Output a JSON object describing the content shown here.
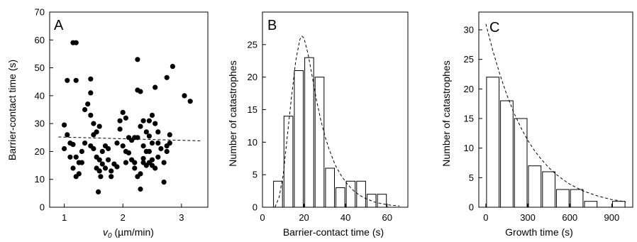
{
  "chart_data": [
    {
      "type": "scatter",
      "panel_label": "A",
      "xlabel_symbol": "v",
      "xlabel_sub": "0",
      "xlabel_unit": " (µm/min)",
      "ylabel": "Barrier-contact time (s)",
      "xlim": [
        0.75,
        3.45
      ],
      "ylim": [
        0,
        70
      ],
      "xticks": [
        1,
        2,
        3
      ],
      "yticks": [
        0,
        10,
        20,
        30,
        40,
        50,
        60,
        70
      ],
      "trend_line": {
        "x": [
          0.9,
          3.35
        ],
        "y": [
          25.2,
          23.8
        ]
      },
      "points": [
        [
          1.15,
          59
        ],
        [
          1.2,
          59
        ],
        [
          1.05,
          45.5
        ],
        [
          1.2,
          45.5
        ],
        [
          1.45,
          46
        ],
        [
          1.4,
          37
        ],
        [
          1.45,
          41
        ],
        [
          1.35,
          35
        ],
        [
          1.45,
          33
        ],
        [
          1.5,
          26
        ],
        [
          1.0,
          29.5
        ],
        [
          1.05,
          26
        ],
        [
          1.1,
          23
        ],
        [
          1.15,
          22.5
        ],
        [
          1.0,
          21
        ],
        [
          1.1,
          18
        ],
        [
          1.2,
          18
        ],
        [
          1.15,
          14
        ],
        [
          1.2,
          11
        ],
        [
          1.25,
          16
        ],
        [
          1.3,
          20
        ],
        [
          1.35,
          23
        ],
        [
          1.5,
          30
        ],
        [
          1.55,
          27
        ],
        [
          1.6,
          29
        ],
        [
          1.65,
          20
        ],
        [
          1.5,
          21
        ],
        [
          1.55,
          18
        ],
        [
          1.6,
          17
        ],
        [
          1.55,
          14
        ],
        [
          1.6,
          13
        ],
        [
          1.62,
          11
        ],
        [
          1.58,
          5.5
        ],
        [
          1.65,
          15.5
        ],
        [
          1.7,
          22
        ],
        [
          1.75,
          17
        ],
        [
          1.8,
          13
        ],
        [
          1.8,
          11
        ],
        [
          1.85,
          15.5
        ],
        [
          1.9,
          14.5
        ],
        [
          1.95,
          28
        ],
        [
          1.95,
          31
        ],
        [
          2.0,
          34
        ],
        [
          2.05,
          32
        ],
        [
          2.1,
          25
        ],
        [
          2.15,
          24
        ],
        [
          2.2,
          25
        ],
        [
          2.1,
          19.5
        ],
        [
          2.15,
          17
        ],
        [
          2.2,
          16
        ],
        [
          2.2,
          14
        ],
        [
          2.25,
          11
        ],
        [
          2.3,
          12
        ],
        [
          2.25,
          53
        ],
        [
          2.25,
          42
        ],
        [
          2.3,
          41.5
        ],
        [
          2.35,
          31
        ],
        [
          2.3,
          29
        ],
        [
          2.25,
          25
        ],
        [
          2.35,
          22
        ],
        [
          2.4,
          20
        ],
        [
          2.35,
          17.5
        ],
        [
          2.4,
          15
        ],
        [
          2.3,
          6.5
        ],
        [
          2.4,
          27
        ],
        [
          2.45,
          31
        ],
        [
          2.45,
          25.5
        ],
        [
          2.5,
          23
        ],
        [
          2.5,
          17
        ],
        [
          2.45,
          16
        ],
        [
          2.5,
          15
        ],
        [
          2.55,
          14
        ],
        [
          2.5,
          33
        ],
        [
          2.55,
          30
        ],
        [
          2.6,
          27
        ],
        [
          2.55,
          43
        ],
        [
          2.7,
          9
        ],
        [
          2.75,
          22
        ],
        [
          2.75,
          20
        ],
        [
          2.8,
          26
        ],
        [
          2.8,
          23
        ],
        [
          2.75,
          46.5
        ],
        [
          2.85,
          50.5
        ],
        [
          3.05,
          40
        ],
        [
          3.15,
          38
        ],
        [
          2.6,
          18
        ],
        [
          2.65,
          21
        ],
        [
          2.05,
          16
        ],
        [
          2.05,
          20
        ],
        [
          1.75,
          21
        ],
        [
          1.45,
          22
        ],
        [
          1.3,
          16
        ],
        [
          1.7,
          14
        ],
        [
          2.0,
          22
        ],
        [
          2.6,
          23
        ],
        [
          2.7,
          16
        ],
        [
          2.45,
          20
        ],
        [
          2.35,
          16
        ],
        [
          1.9,
          23
        ],
        [
          1.25,
          12
        ]
      ]
    },
    {
      "type": "bar",
      "panel_label": "B",
      "xlabel": "Barrier-contact time (s)",
      "ylabel": "Number of catastrophes",
      "xlim": [
        0,
        70
      ],
      "ylim": [
        0,
        30
      ],
      "xticks": [
        0,
        20,
        40,
        60
      ],
      "yticks": [
        0,
        5,
        10,
        15,
        20,
        25
      ],
      "bin_width": 5,
      "bin_starts": [
        5,
        10,
        15,
        20,
        25,
        30,
        35,
        40,
        45,
        50,
        55,
        60
      ],
      "values": [
        4,
        14,
        21,
        23,
        20,
        6,
        3,
        4,
        4,
        2,
        2,
        0
      ],
      "fit_curve": {
        "x": [
          6,
          8,
          10,
          12,
          14,
          16,
          18,
          19,
          20,
          22,
          24,
          26,
          28,
          30,
          32,
          35,
          38,
          41,
          44,
          47,
          50,
          54,
          58,
          62,
          66
        ],
        "y": [
          0,
          1.5,
          5,
          11,
          17,
          22.5,
          25.8,
          26.3,
          26,
          23.5,
          20,
          16.5,
          13.5,
          11,
          9,
          6.5,
          4.8,
          3.5,
          2.5,
          1.8,
          1.3,
          0.8,
          0.5,
          0.3,
          0.2
        ]
      }
    },
    {
      "type": "bar",
      "panel_label": "C",
      "xlabel": "Growth time (s)",
      "ylabel": "Number of catastrophes",
      "xlim": [
        -50,
        1050
      ],
      "ylim": [
        0,
        33
      ],
      "xticks": [
        0,
        300,
        600,
        900
      ],
      "yticks": [
        0,
        5,
        10,
        15,
        20,
        25,
        30
      ],
      "bin_width": 100,
      "bin_starts": [
        0,
        100,
        200,
        300,
        400,
        500,
        600,
        700,
        800,
        900
      ],
      "values": [
        22,
        18,
        15,
        7,
        6,
        3,
        3,
        1,
        0,
        1
      ],
      "fit_curve": {
        "x": [
          0,
          50,
          100,
          150,
          200,
          250,
          300,
          350,
          400,
          450,
          500,
          550,
          600,
          650,
          700,
          750,
          800,
          850,
          900,
          950,
          1000
        ],
        "y": [
          31,
          26.5,
          22.5,
          19,
          16,
          13.5,
          11.3,
          9.5,
          8,
          6.7,
          5.6,
          4.7,
          3.9,
          3.3,
          2.7,
          2.3,
          1.9,
          1.6,
          1.3,
          1.1,
          0.9
        ]
      }
    }
  ]
}
